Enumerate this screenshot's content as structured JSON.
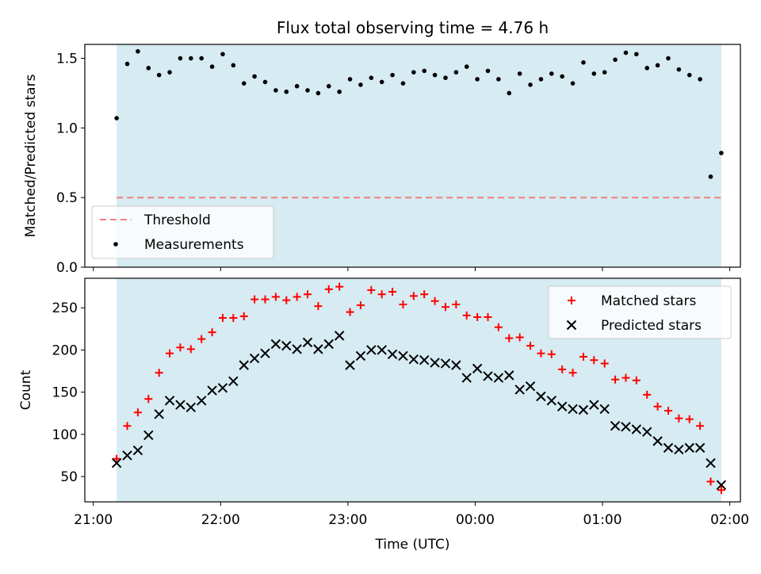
{
  "chart_data": [
    {
      "type": "scatter",
      "title": "Flux total observing time = 4.76 h",
      "ylabel": "Matched/Predicted stars",
      "xlabel": "",
      "x_unit": "time (UTC)",
      "xlim": [
        "21:00",
        "02:00"
      ],
      "xticks": [
        "21:00",
        "22:00",
        "23:00",
        "00:00",
        "01:00",
        "02:00"
      ],
      "ylim": [
        0,
        1.6
      ],
      "yticks": [
        "0.0",
        "0.5",
        "1.0",
        "1.5"
      ],
      "grid": false,
      "legend_position": "lower-left",
      "shaded_interval": {
        "start": "21:11",
        "end": "01:56",
        "color": "#add8e6"
      },
      "threshold": {
        "name": "Threshold",
        "value": 0.5,
        "color": "#f08080",
        "style": "dashed"
      },
      "series": [
        {
          "name": "Measurements",
          "marker": "dot",
          "color": "#000000",
          "x": [
            "21:11",
            "21:16",
            "21:21",
            "21:26",
            "21:31",
            "21:36",
            "21:41",
            "21:46",
            "21:51",
            "21:56",
            "22:01",
            "22:06",
            "22:11",
            "22:16",
            "22:21",
            "22:26",
            "22:31",
            "22:36",
            "22:41",
            "22:46",
            "22:51",
            "22:56",
            "23:01",
            "23:06",
            "23:11",
            "23:16",
            "23:21",
            "23:26",
            "23:31",
            "23:36",
            "23:41",
            "23:46",
            "23:51",
            "23:56",
            "00:01",
            "00:06",
            "00:11",
            "00:16",
            "00:21",
            "00:26",
            "00:31",
            "00:36",
            "00:41",
            "00:46",
            "00:51",
            "00:56",
            "01:01",
            "01:06",
            "01:11",
            "01:16",
            "01:21",
            "01:26",
            "01:31",
            "01:36",
            "01:41",
            "01:46",
            "01:51",
            "01:56"
          ],
          "y": [
            1.07,
            1.46,
            1.55,
            1.43,
            1.38,
            1.4,
            1.5,
            1.5,
            1.5,
            1.44,
            1.53,
            1.45,
            1.32,
            1.37,
            1.33,
            1.27,
            1.26,
            1.3,
            1.27,
            1.25,
            1.3,
            1.26,
            1.35,
            1.31,
            1.36,
            1.33,
            1.38,
            1.32,
            1.4,
            1.41,
            1.38,
            1.36,
            1.4,
            1.44,
            1.35,
            1.41,
            1.35,
            1.25,
            1.39,
            1.31,
            1.35,
            1.39,
            1.37,
            1.32,
            1.47,
            1.39,
            1.4,
            1.49,
            1.54,
            1.53,
            1.43,
            1.45,
            1.5,
            1.42,
            1.38,
            1.35,
            0.65,
            0.82
          ]
        }
      ]
    },
    {
      "type": "scatter",
      "title": "",
      "ylabel": "Count",
      "xlabel": "Time (UTC)",
      "xlim": [
        "21:00",
        "02:00"
      ],
      "xticks": [
        "21:00",
        "22:00",
        "23:00",
        "00:00",
        "01:00",
        "02:00"
      ],
      "ylim": [
        20,
        285
      ],
      "yticks": [
        "50",
        "100",
        "150",
        "200",
        "250"
      ],
      "grid": false,
      "legend_position": "upper-right",
      "shaded_interval": {
        "start": "21:11",
        "end": "01:56",
        "color": "#add8e6"
      },
      "series": [
        {
          "name": "Matched stars",
          "marker": "plus",
          "color": "#ff0000",
          "x": [
            "21:11",
            "21:16",
            "21:21",
            "21:26",
            "21:31",
            "21:36",
            "21:41",
            "21:46",
            "21:51",
            "21:56",
            "22:01",
            "22:06",
            "22:11",
            "22:16",
            "22:21",
            "22:26",
            "22:31",
            "22:36",
            "22:41",
            "22:46",
            "22:51",
            "22:56",
            "23:01",
            "23:06",
            "23:11",
            "23:16",
            "23:21",
            "23:26",
            "23:31",
            "23:36",
            "23:41",
            "23:46",
            "23:51",
            "23:56",
            "00:01",
            "00:06",
            "00:11",
            "00:16",
            "00:21",
            "00:26",
            "00:31",
            "00:36",
            "00:41",
            "00:46",
            "00:51",
            "00:56",
            "01:01",
            "01:06",
            "01:11",
            "01:16",
            "01:21",
            "01:26",
            "01:31",
            "01:36",
            "01:41",
            "01:46",
            "01:51",
            "01:56"
          ],
          "y": [
            71,
            110,
            126,
            142,
            173,
            196,
            203,
            201,
            213,
            221,
            238,
            238,
            240,
            260,
            260,
            263,
            259,
            263,
            266,
            252,
            272,
            275,
            245,
            253,
            271,
            266,
            269,
            254,
            264,
            266,
            258,
            251,
            254,
            241,
            239,
            239,
            227,
            214,
            215,
            205,
            196,
            195,
            177,
            173,
            192,
            188,
            184,
            165,
            167,
            164,
            147,
            133,
            128,
            119,
            118,
            110,
            44,
            34
          ]
        },
        {
          "name": "Predicted stars",
          "marker": "x",
          "color": "#000000",
          "x": [
            "21:11",
            "21:16",
            "21:21",
            "21:26",
            "21:31",
            "21:36",
            "21:41",
            "21:46",
            "21:51",
            "21:56",
            "22:01",
            "22:06",
            "22:11",
            "22:16",
            "22:21",
            "22:26",
            "22:31",
            "22:36",
            "22:41",
            "22:46",
            "22:51",
            "22:56",
            "23:01",
            "23:06",
            "23:11",
            "23:16",
            "23:21",
            "23:26",
            "23:31",
            "23:36",
            "23:41",
            "23:46",
            "23:51",
            "23:56",
            "00:01",
            "00:06",
            "00:11",
            "00:16",
            "00:21",
            "00:26",
            "00:31",
            "00:36",
            "00:41",
            "00:46",
            "00:51",
            "00:56",
            "01:01",
            "01:06",
            "01:11",
            "01:16",
            "01:21",
            "01:26",
            "01:31",
            "01:36",
            "01:41",
            "01:46",
            "01:51",
            "01:56"
          ],
          "y": [
            66,
            75,
            81,
            99,
            124,
            140,
            135,
            132,
            140,
            152,
            155,
            163,
            182,
            190,
            196,
            207,
            205,
            201,
            209,
            201,
            207,
            217,
            182,
            193,
            200,
            200,
            195,
            193,
            189,
            188,
            185,
            184,
            182,
            167,
            178,
            169,
            167,
            170,
            153,
            157,
            145,
            140,
            133,
            130,
            129,
            135,
            130,
            110,
            109,
            106,
            103,
            92,
            84,
            82,
            84,
            84,
            66,
            40
          ]
        }
      ]
    }
  ]
}
